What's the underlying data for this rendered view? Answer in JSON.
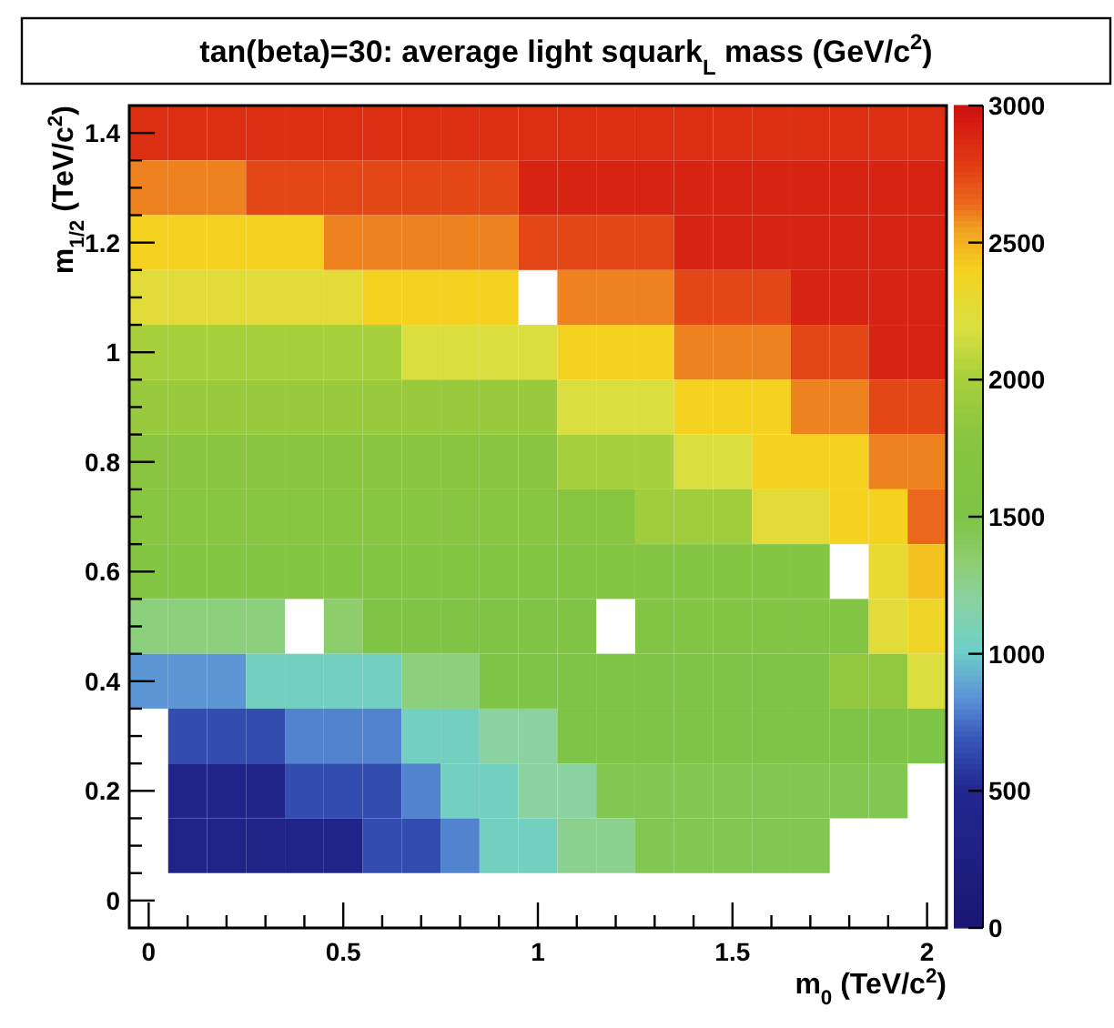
{
  "chart_data": {
    "type": "heatmap",
    "title": "tan(beta)=30: average light squark$_{L}$ mass (GeV/c$^{2}$)",
    "xlabel": "m$_{0}$ (TeV/c$^{2}$)",
    "ylabel": "m$_{1/2}$ (TeV/c$^{2}$)",
    "x": [
      0,
      0.1,
      0.2,
      0.3,
      0.4,
      0.5,
      0.6,
      0.7,
      0.8,
      0.9,
      1.0,
      1.1,
      1.2,
      1.3,
      1.4,
      1.5,
      1.6,
      1.7,
      1.8,
      1.9,
      2.0
    ],
    "y": [
      1.4,
      1.3,
      1.2,
      1.1,
      1.0,
      0.9,
      0.8,
      0.7,
      0.6,
      0.5,
      0.4,
      0.3,
      0.2,
      0.1
    ],
    "xlim": [
      -0.05,
      2.05
    ],
    "ylim": [
      -0.05,
      1.45
    ],
    "xticks": [
      0,
      {
        "value": 0.1,
        "label": null
      },
      {
        "value": 0.2,
        "label": null
      },
      {
        "value": 0.3,
        "label": null
      },
      {
        "value": 0.4,
        "label": null
      },
      0.5,
      {
        "value": 0.6,
        "label": null
      },
      {
        "value": 0.7,
        "label": null
      },
      {
        "value": 0.8,
        "label": null
      },
      {
        "value": 0.9,
        "label": null
      },
      1,
      {
        "value": 1.1,
        "label": null
      },
      {
        "value": 1.2,
        "label": null
      },
      {
        "value": 1.3,
        "label": null
      },
      {
        "value": 1.4,
        "label": null
      },
      1.5,
      {
        "value": 1.6,
        "label": null
      },
      {
        "value": 1.7,
        "label": null
      },
      {
        "value": 1.8,
        "label": null
      },
      {
        "value": 1.9,
        "label": null
      },
      2
    ],
    "yticks": [
      0,
      {
        "value": 0.05,
        "label": null
      },
      {
        "value": 0.1,
        "label": null
      },
      {
        "value": 0.15,
        "label": null
      },
      0.2,
      {
        "value": 0.25,
        "label": null
      },
      {
        "value": 0.3,
        "label": null
      },
      {
        "value": 0.35,
        "label": null
      },
      0.4,
      {
        "value": 0.45,
        "label": null
      },
      {
        "value": 0.5,
        "label": null
      },
      {
        "value": 0.55,
        "label": null
      },
      0.6,
      {
        "value": 0.65,
        "label": null
      },
      {
        "value": 0.7,
        "label": null
      },
      {
        "value": 0.75,
        "label": null
      },
      0.8,
      {
        "value": 0.85,
        "label": null
      },
      {
        "value": 0.9,
        "label": null
      },
      {
        "value": 0.95,
        "label": null
      },
      1,
      {
        "value": 1.05,
        "label": null
      },
      {
        "value": 1.1,
        "label": null
      },
      {
        "value": 1.15,
        "label": null
      },
      1.2,
      {
        "value": 1.25,
        "label": null
      },
      {
        "value": 1.3,
        "label": null
      },
      {
        "value": 1.35,
        "label": null
      },
      1.4
    ],
    "clim": [
      0,
      3000
    ],
    "cticks": [
      0,
      500,
      1000,
      1500,
      2000,
      2500,
      3000
    ],
    "cells": [
      [
        2850,
        2850,
        2850,
        2850,
        2850,
        2850,
        2850,
        2850,
        2850,
        2850,
        2850,
        2850,
        2850,
        2850,
        2850,
        2850,
        2850,
        2850,
        2850,
        2850,
        2850
      ],
      [
        2600,
        2600,
        2600,
        2750,
        2750,
        2750,
        2750,
        2750,
        2750,
        2750,
        2900,
        2900,
        2900,
        2900,
        2900,
        2900,
        2900,
        2900,
        2900,
        2900,
        2900
      ],
      [
        2400,
        2400,
        2400,
        2400,
        2400,
        2600,
        2600,
        2600,
        2600,
        2600,
        2750,
        2750,
        2750,
        2750,
        2900,
        2900,
        2900,
        2900,
        2900,
        2900,
        2900
      ],
      [
        2250,
        2250,
        2250,
        2250,
        2250,
        2250,
        2400,
        2400,
        2400,
        2400,
        null,
        2600,
        2600,
        2600,
        2750,
        2750,
        2750,
        2900,
        2900,
        2900,
        2900
      ],
      [
        2000,
        2000,
        2000,
        2000,
        2000,
        2000,
        2000,
        2200,
        2200,
        2200,
        2200,
        2400,
        2400,
        2400,
        2600,
        2600,
        2600,
        2750,
        2750,
        2900,
        2900
      ],
      [
        1900,
        1900,
        1900,
        1900,
        1900,
        1900,
        1900,
        1900,
        1900,
        1900,
        1900,
        2200,
        2200,
        2200,
        2400,
        2400,
        2400,
        2600,
        2600,
        2750,
        2750
      ],
      [
        1800,
        1800,
        1800,
        1800,
        1800,
        1800,
        1800,
        1800,
        1800,
        1800,
        1800,
        2000,
        2000,
        2000,
        2200,
        2200,
        2400,
        2400,
        2400,
        2600,
        2600
      ],
      [
        1750,
        1750,
        1750,
        1750,
        1750,
        1750,
        1750,
        1750,
        1750,
        1750,
        1750,
        1750,
        1750,
        1950,
        1950,
        1950,
        2250,
        2250,
        2400,
        2400,
        2650
      ],
      [
        1650,
        1650,
        1650,
        1650,
        1650,
        1650,
        1650,
        1650,
        1650,
        1650,
        1650,
        1650,
        1650,
        1650,
        1650,
        1650,
        1650,
        1650,
        null,
        2300,
        2450
      ],
      [
        1300,
        1300,
        1300,
        1300,
        null,
        1350,
        1550,
        1550,
        1550,
        1550,
        1550,
        1550,
        null,
        1600,
        1600,
        1600,
        1600,
        1600,
        1600,
        2250,
        2350
      ],
      [
        850,
        850,
        850,
        1050,
        1050,
        1050,
        1050,
        1300,
        1300,
        1500,
        1500,
        1500,
        1500,
        1500,
        1500,
        1500,
        1500,
        1500,
        1850,
        1850,
        2200
      ],
      [
        null,
        650,
        650,
        650,
        800,
        800,
        800,
        1050,
        1050,
        1200,
        1200,
        1500,
        1500,
        1500,
        1500,
        1500,
        1500,
        1500,
        1500,
        1500,
        1500
      ],
      [
        null,
        400,
        400,
        400,
        650,
        650,
        650,
        800,
        1050,
        1050,
        1200,
        1200,
        1450,
        1450,
        1450,
        1450,
        1450,
        1450,
        1450,
        1450,
        null
      ],
      [
        null,
        350,
        350,
        350,
        400,
        400,
        650,
        650,
        800,
        1050,
        1050,
        1250,
        1250,
        1450,
        1450,
        1450,
        1450,
        1450,
        null,
        null,
        null
      ]
    ]
  }
}
